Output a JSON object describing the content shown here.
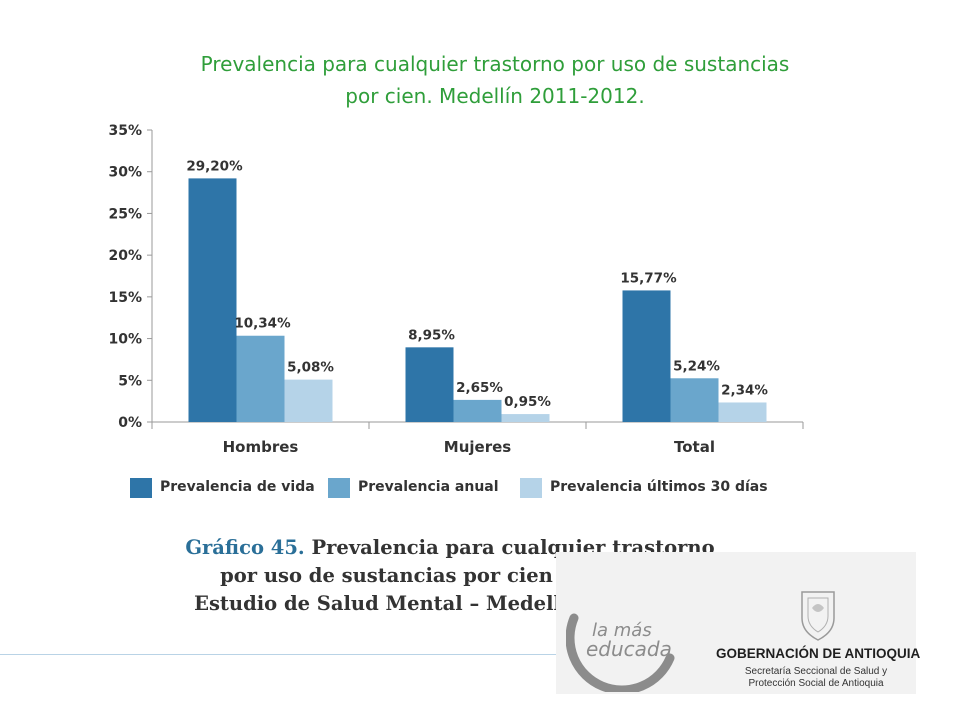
{
  "slide": {
    "title_line1": "Prevalencia para cualquier trastorno por uso de sustancias",
    "title_line2": "por cien. Medellín 2011-2012.",
    "title_color": "#2f9e3a"
  },
  "chart_data": {
    "type": "bar",
    "categories": [
      "Hombres",
      "Mujeres",
      "Total"
    ],
    "series": [
      {
        "name": "Prevalencia de vida",
        "values": [
          29.2,
          8.95,
          15.77
        ],
        "labels": [
          "29,20%",
          "8,95%",
          "15,77%"
        ],
        "color": "#2e75a8"
      },
      {
        "name": "Prevalencia anual",
        "values": [
          10.34,
          2.65,
          5.24
        ],
        "labels": [
          "10,34%",
          "2,65%",
          "5,24%"
        ],
        "color": "#6aa6cc"
      },
      {
        "name": "Prevalencia últimos 30 días",
        "values": [
          5.08,
          0.95,
          2.34
        ],
        "labels": [
          "5,08%",
          "0,95%",
          "2,34%"
        ],
        "color": "#b5d3e8"
      }
    ],
    "ylim": [
      0,
      35
    ],
    "yticks": [
      0,
      5,
      10,
      15,
      20,
      25,
      30,
      35
    ],
    "ytick_labels": [
      "0%",
      "5%",
      "10%",
      "15%",
      "20%",
      "25%",
      "30%",
      "35%"
    ],
    "legend_position": "bottom",
    "grid": false
  },
  "caption": {
    "prefix": "Gráfico 45.",
    "line1_rest": " Prevalencia para cualquier trastorno",
    "line2": "por uso de sustancias por cien según sexo",
    "line3": "Estudio de Salud Mental – Medellín 2011-2012"
  },
  "logos": {
    "medellin_line1": "la más",
    "medellin_line2": "educada",
    "gob_title": "GOBERNACIÓN DE ANTIOQUIA",
    "gob_sub1": "Secretaría Seccional de Salud y",
    "gob_sub2": "Protección Social de Antioquia",
    "seal_icon": "antioquia-seal-icon"
  }
}
